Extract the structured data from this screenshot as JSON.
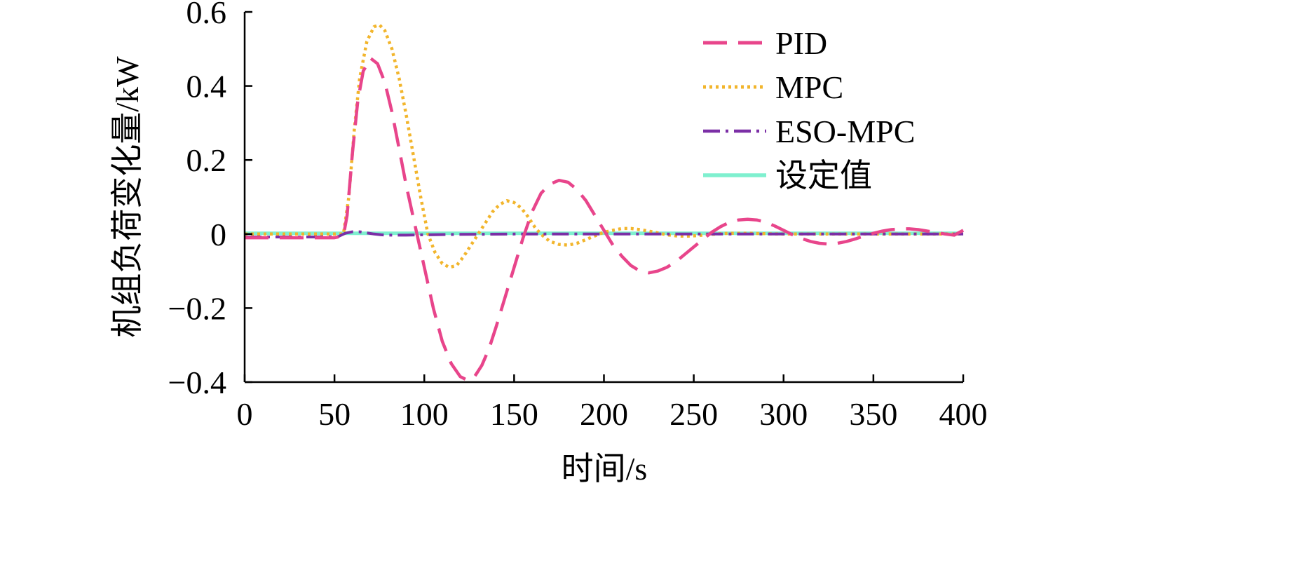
{
  "chart_data": {
    "type": "line",
    "xlabel": "时间/s",
    "ylabel": "机组负荷变化量/kW",
    "xlim": [
      0,
      400
    ],
    "ylim": [
      -0.4,
      0.6
    ],
    "x_ticks": [
      0,
      50,
      100,
      150,
      200,
      250,
      300,
      350,
      400
    ],
    "y_ticks": [
      -0.4,
      -0.2,
      0,
      0.2,
      0.4,
      0.6
    ],
    "x_tick_labels": [
      "0",
      "50",
      "100",
      "150",
      "200",
      "250",
      "300",
      "350",
      "400"
    ],
    "y_tick_labels": [
      "−0.4",
      "−0.2",
      "0",
      "0.2",
      "0.4",
      "0.6"
    ],
    "grid": false,
    "legend_position": "top-right",
    "series": [
      {
        "name": "PID",
        "color": "#e8458b",
        "style": "dashed",
        "points": [
          [
            0,
            -0.01
          ],
          [
            10,
            -0.01
          ],
          [
            20,
            -0.01
          ],
          [
            30,
            -0.01
          ],
          [
            40,
            -0.01
          ],
          [
            50,
            -0.01
          ],
          [
            55,
            -0.005
          ],
          [
            57,
            0.05
          ],
          [
            60,
            0.22
          ],
          [
            63,
            0.36
          ],
          [
            66,
            0.44
          ],
          [
            70,
            0.475
          ],
          [
            74,
            0.46
          ],
          [
            78,
            0.41
          ],
          [
            82,
            0.33
          ],
          [
            86,
            0.23
          ],
          [
            90,
            0.13
          ],
          [
            95,
            0.02
          ],
          [
            100,
            -0.09
          ],
          [
            105,
            -0.2
          ],
          [
            110,
            -0.29
          ],
          [
            115,
            -0.35
          ],
          [
            120,
            -0.385
          ],
          [
            124,
            -0.395
          ],
          [
            128,
            -0.385
          ],
          [
            132,
            -0.355
          ],
          [
            136,
            -0.31
          ],
          [
            140,
            -0.25
          ],
          [
            145,
            -0.17
          ],
          [
            150,
            -0.09
          ],
          [
            155,
            -0.01
          ],
          [
            160,
            0.06
          ],
          [
            165,
            0.11
          ],
          [
            170,
            0.135
          ],
          [
            175,
            0.145
          ],
          [
            180,
            0.14
          ],
          [
            185,
            0.12
          ],
          [
            190,
            0.09
          ],
          [
            195,
            0.05
          ],
          [
            200,
            0.01
          ],
          [
            205,
            -0.03
          ],
          [
            210,
            -0.06
          ],
          [
            215,
            -0.085
          ],
          [
            220,
            -0.1
          ],
          [
            225,
            -0.105
          ],
          [
            230,
            -0.1
          ],
          [
            235,
            -0.09
          ],
          [
            240,
            -0.075
          ],
          [
            245,
            -0.055
          ],
          [
            250,
            -0.035
          ],
          [
            255,
            -0.015
          ],
          [
            260,
            0.005
          ],
          [
            265,
            0.02
          ],
          [
            270,
            0.032
          ],
          [
            275,
            0.038
          ],
          [
            280,
            0.04
          ],
          [
            285,
            0.038
          ],
          [
            290,
            0.032
          ],
          [
            295,
            0.022
          ],
          [
            300,
            0.01
          ],
          [
            305,
            -0.002
          ],
          [
            310,
            -0.012
          ],
          [
            315,
            -0.02
          ],
          [
            320,
            -0.025
          ],
          [
            325,
            -0.027
          ],
          [
            330,
            -0.025
          ],
          [
            335,
            -0.02
          ],
          [
            340,
            -0.013
          ],
          [
            345,
            -0.005
          ],
          [
            350,
            0.002
          ],
          [
            355,
            0.008
          ],
          [
            360,
            0.012
          ],
          [
            365,
            0.014
          ],
          [
            370,
            0.014
          ],
          [
            375,
            0.012
          ],
          [
            380,
            0.008
          ],
          [
            385,
            0.004
          ],
          [
            390,
            0.0
          ],
          [
            395,
            -0.003
          ],
          [
            400,
            0.01
          ]
        ]
      },
      {
        "name": "MPC",
        "color": "#f2b52c",
        "style": "dotted",
        "points": [
          [
            0,
            0
          ],
          [
            50,
            0
          ],
          [
            55,
            0
          ],
          [
            58,
            0.1
          ],
          [
            61,
            0.28
          ],
          [
            64,
            0.42
          ],
          [
            68,
            0.52
          ],
          [
            72,
            0.56
          ],
          [
            75,
            0.565
          ],
          [
            78,
            0.55
          ],
          [
            82,
            0.5
          ],
          [
            86,
            0.42
          ],
          [
            90,
            0.32
          ],
          [
            94,
            0.21
          ],
          [
            98,
            0.1
          ],
          [
            102,
            0.0
          ],
          [
            106,
            -0.05
          ],
          [
            110,
            -0.08
          ],
          [
            114,
            -0.09
          ],
          [
            118,
            -0.085
          ],
          [
            122,
            -0.06
          ],
          [
            126,
            -0.03
          ],
          [
            130,
            0.0
          ],
          [
            134,
            0.03
          ],
          [
            138,
            0.06
          ],
          [
            142,
            0.08
          ],
          [
            146,
            0.09
          ],
          [
            150,
            0.085
          ],
          [
            154,
            0.07
          ],
          [
            158,
            0.045
          ],
          [
            162,
            0.015
          ],
          [
            166,
            -0.005
          ],
          [
            170,
            -0.02
          ],
          [
            175,
            -0.028
          ],
          [
            180,
            -0.03
          ],
          [
            185,
            -0.025
          ],
          [
            190,
            -0.015
          ],
          [
            195,
            -0.005
          ],
          [
            200,
            0.005
          ],
          [
            205,
            0.01
          ],
          [
            210,
            0.015
          ],
          [
            215,
            0.015
          ],
          [
            220,
            0.012
          ],
          [
            225,
            0.008
          ],
          [
            230,
            0.003
          ],
          [
            235,
            -0.002
          ],
          [
            240,
            -0.005
          ],
          [
            245,
            -0.006
          ],
          [
            250,
            -0.005
          ],
          [
            255,
            -0.003
          ],
          [
            260,
            -0.001
          ],
          [
            265,
            0.001
          ],
          [
            270,
            0.002
          ],
          [
            280,
            0.002
          ],
          [
            290,
            0.001
          ],
          [
            300,
            0
          ],
          [
            320,
            0
          ],
          [
            350,
            0
          ],
          [
            400,
            0
          ]
        ]
      },
      {
        "name": "ESO-MPC",
        "color": "#7b2fa6",
        "style": "dashdot",
        "points": [
          [
            0,
            -0.008
          ],
          [
            20,
            -0.008
          ],
          [
            40,
            -0.008
          ],
          [
            52,
            -0.007
          ],
          [
            56,
            0.002
          ],
          [
            60,
            0.006
          ],
          [
            64,
            0.006
          ],
          [
            68,
            0.003
          ],
          [
            72,
            0.0
          ],
          [
            76,
            -0.002
          ],
          [
            80,
            -0.003
          ],
          [
            90,
            -0.003
          ],
          [
            100,
            -0.002
          ],
          [
            120,
            -0.001
          ],
          [
            150,
            0.0
          ],
          [
            200,
            0.0
          ],
          [
            250,
            0.0
          ],
          [
            300,
            0.0
          ],
          [
            350,
            0.0
          ],
          [
            400,
            0.0
          ]
        ]
      },
      {
        "name": "设定值",
        "color": "#7ff0cf",
        "style": "solid",
        "points": [
          [
            0,
            0.002
          ],
          [
            400,
            0.002
          ]
        ]
      }
    ]
  }
}
